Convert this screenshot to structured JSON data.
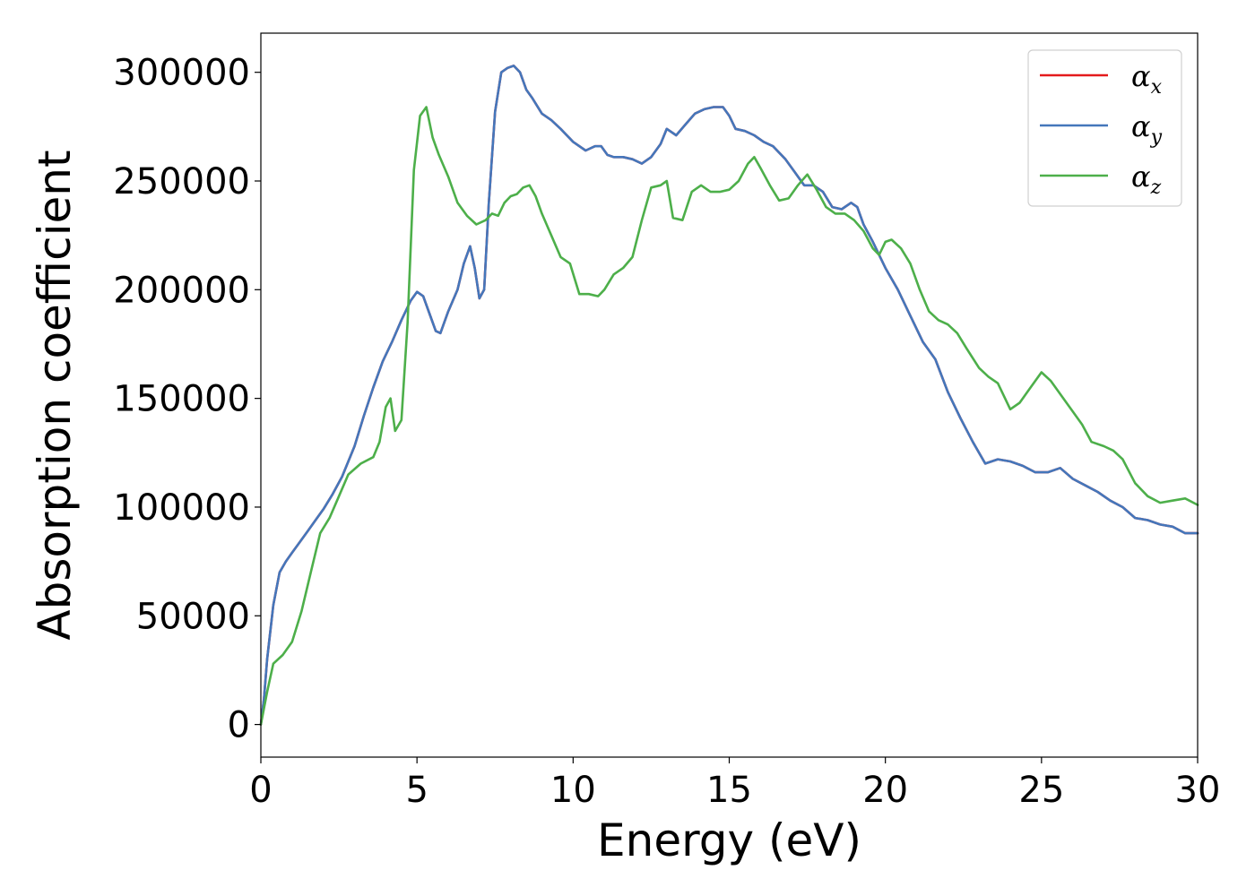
{
  "chart_data": {
    "type": "line",
    "xlabel": "Energy (eV)",
    "ylabel": "Absorption coefficient",
    "xlim": [
      0,
      30
    ],
    "ylim": [
      -15000,
      318000
    ],
    "xticks": [
      0,
      5,
      10,
      15,
      20,
      25,
      30
    ],
    "yticks": [
      0,
      50000,
      100000,
      150000,
      200000,
      250000,
      300000
    ],
    "grid": false,
    "legend_position": "top-right",
    "series": [
      {
        "name": "α_x",
        "legend_symbol": "α",
        "legend_subscript": "x",
        "color": "#e41a1c",
        "x": [
          0,
          0.1,
          0.2,
          0.4,
          0.6,
          0.8,
          1.0,
          1.2,
          1.5,
          1.8,
          2.0,
          2.3,
          2.6,
          3.0,
          3.3,
          3.6,
          3.9,
          4.2,
          4.5,
          4.8,
          5.0,
          5.2,
          5.4,
          5.6,
          5.75,
          6.0,
          6.3,
          6.5,
          6.7,
          6.85,
          7.0,
          7.15,
          7.3,
          7.5,
          7.7,
          7.9,
          8.1,
          8.3,
          8.5,
          8.7,
          9.0,
          9.3,
          9.6,
          10.0,
          10.4,
          10.7,
          10.9,
          11.1,
          11.3,
          11.6,
          11.9,
          12.2,
          12.5,
          12.8,
          13.0,
          13.3,
          13.6,
          13.9,
          14.2,
          14.5,
          14.8,
          15.0,
          15.2,
          15.5,
          15.8,
          16.1,
          16.4,
          16.8,
          17.1,
          17.4,
          17.7,
          18.0,
          18.3,
          18.6,
          18.9,
          19.1,
          19.3,
          19.6,
          20.0,
          20.4,
          20.8,
          21.2,
          21.6,
          22.0,
          22.4,
          22.8,
          23.2,
          23.6,
          24.0,
          24.4,
          24.8,
          25.2,
          25.6,
          26.0,
          26.4,
          26.8,
          27.2,
          27.6,
          28.0,
          28.4,
          28.8,
          29.2,
          29.6,
          30.0
        ],
        "y": [
          0,
          12000,
          30000,
          55000,
          70000,
          75000,
          79000,
          83000,
          89000,
          95000,
          99000,
          106000,
          114000,
          128000,
          142000,
          155000,
          167000,
          176000,
          186000,
          195000,
          199000,
          197000,
          189000,
          181000,
          180000,
          190000,
          200000,
          212000,
          220000,
          210000,
          196000,
          200000,
          240000,
          282000,
          300000,
          302000,
          303000,
          300000,
          292000,
          288000,
          281000,
          278000,
          274000,
          268000,
          264000,
          266000,
          266000,
          262000,
          261000,
          261000,
          260000,
          258000,
          261000,
          267000,
          274000,
          271000,
          276000,
          281000,
          283000,
          284000,
          284000,
          280000,
          274000,
          273000,
          271000,
          268000,
          266000,
          260000,
          254000,
          248000,
          248000,
          245000,
          238000,
          237000,
          240000,
          238000,
          230000,
          222000,
          210000,
          200000,
          188000,
          176000,
          168000,
          153000,
          141000,
          130000,
          120000,
          122000,
          121000,
          119000,
          116000,
          116000,
          118000,
          113000,
          110000,
          107000,
          103000,
          100000,
          95000,
          94000,
          92000,
          91000,
          88000,
          88000
        ]
      },
      {
        "name": "α_y",
        "legend_symbol": "α",
        "legend_subscript": "y",
        "color": "#4477bb",
        "x": [
          0,
          0.1,
          0.2,
          0.4,
          0.6,
          0.8,
          1.0,
          1.2,
          1.5,
          1.8,
          2.0,
          2.3,
          2.6,
          3.0,
          3.3,
          3.6,
          3.9,
          4.2,
          4.5,
          4.8,
          5.0,
          5.2,
          5.4,
          5.6,
          5.75,
          6.0,
          6.3,
          6.5,
          6.7,
          6.85,
          7.0,
          7.15,
          7.3,
          7.5,
          7.7,
          7.9,
          8.1,
          8.3,
          8.5,
          8.7,
          9.0,
          9.3,
          9.6,
          10.0,
          10.4,
          10.7,
          10.9,
          11.1,
          11.3,
          11.6,
          11.9,
          12.2,
          12.5,
          12.8,
          13.0,
          13.3,
          13.6,
          13.9,
          14.2,
          14.5,
          14.8,
          15.0,
          15.2,
          15.5,
          15.8,
          16.1,
          16.4,
          16.8,
          17.1,
          17.4,
          17.7,
          18.0,
          18.3,
          18.6,
          18.9,
          19.1,
          19.3,
          19.6,
          20.0,
          20.4,
          20.8,
          21.2,
          21.6,
          22.0,
          22.4,
          22.8,
          23.2,
          23.6,
          24.0,
          24.4,
          24.8,
          25.2,
          25.6,
          26.0,
          26.4,
          26.8,
          27.2,
          27.6,
          28.0,
          28.4,
          28.8,
          29.2,
          29.6,
          30.0
        ],
        "y": [
          0,
          12000,
          30000,
          55000,
          70000,
          75000,
          79000,
          83000,
          89000,
          95000,
          99000,
          106000,
          114000,
          128000,
          142000,
          155000,
          167000,
          176000,
          186000,
          195000,
          199000,
          197000,
          189000,
          181000,
          180000,
          190000,
          200000,
          212000,
          220000,
          210000,
          196000,
          200000,
          240000,
          282000,
          300000,
          302000,
          303000,
          300000,
          292000,
          288000,
          281000,
          278000,
          274000,
          268000,
          264000,
          266000,
          266000,
          262000,
          261000,
          261000,
          260000,
          258000,
          261000,
          267000,
          274000,
          271000,
          276000,
          281000,
          283000,
          284000,
          284000,
          280000,
          274000,
          273000,
          271000,
          268000,
          266000,
          260000,
          254000,
          248000,
          248000,
          245000,
          238000,
          237000,
          240000,
          238000,
          230000,
          222000,
          210000,
          200000,
          188000,
          176000,
          168000,
          153000,
          141000,
          130000,
          120000,
          122000,
          121000,
          119000,
          116000,
          116000,
          118000,
          113000,
          110000,
          107000,
          103000,
          100000,
          95000,
          94000,
          92000,
          91000,
          88000,
          88000
        ]
      },
      {
        "name": "α_z",
        "legend_symbol": "α",
        "legend_subscript": "z",
        "color": "#4daf4a",
        "x": [
          0,
          0.2,
          0.4,
          0.7,
          1.0,
          1.3,
          1.6,
          1.9,
          2.2,
          2.5,
          2.8,
          3.2,
          3.6,
          3.8,
          4.0,
          4.15,
          4.3,
          4.5,
          4.7,
          4.9,
          5.1,
          5.3,
          5.5,
          5.7,
          6.0,
          6.3,
          6.6,
          6.9,
          7.2,
          7.4,
          7.6,
          7.8,
          8.0,
          8.2,
          8.4,
          8.6,
          8.8,
          9.0,
          9.3,
          9.6,
          9.9,
          10.2,
          10.5,
          10.8,
          11.0,
          11.3,
          11.6,
          11.9,
          12.2,
          12.5,
          12.8,
          13.0,
          13.2,
          13.5,
          13.8,
          14.1,
          14.4,
          14.7,
          15.0,
          15.3,
          15.6,
          15.8,
          16.0,
          16.3,
          16.6,
          16.9,
          17.2,
          17.5,
          17.8,
          18.1,
          18.4,
          18.7,
          19.0,
          19.3,
          19.6,
          19.8,
          20.0,
          20.2,
          20.5,
          20.8,
          21.1,
          21.4,
          21.7,
          22.0,
          22.3,
          22.6,
          23.0,
          23.3,
          23.6,
          24.0,
          24.3,
          24.6,
          25.0,
          25.3,
          25.6,
          26.0,
          26.3,
          26.6,
          27.0,
          27.3,
          27.6,
          28.0,
          28.4,
          28.8,
          29.2,
          29.6,
          30.0
        ],
        "y": [
          0,
          15000,
          28000,
          32000,
          38000,
          52000,
          70000,
          88000,
          95000,
          105000,
          115000,
          120000,
          123000,
          130000,
          146000,
          150000,
          135000,
          140000,
          185000,
          255000,
          280000,
          284000,
          270000,
          262000,
          252000,
          240000,
          234000,
          230000,
          232000,
          235000,
          234000,
          240000,
          243000,
          244000,
          247000,
          248000,
          243000,
          235000,
          225000,
          215000,
          212000,
          198000,
          198000,
          197000,
          200000,
          207000,
          210000,
          215000,
          232000,
          247000,
          248000,
          250000,
          233000,
          232000,
          245000,
          248000,
          245000,
          245000,
          246000,
          250000,
          258000,
          261000,
          256000,
          248000,
          241000,
          242000,
          248000,
          253000,
          246000,
          238000,
          235000,
          235000,
          232000,
          227000,
          219000,
          216000,
          222000,
          223000,
          219000,
          212000,
          200000,
          190000,
          186000,
          184000,
          180000,
          173000,
          164000,
          160000,
          157000,
          145000,
          148000,
          154000,
          162000,
          158000,
          152000,
          144000,
          138000,
          130000,
          128000,
          126000,
          122000,
          111000,
          105000,
          102000,
          103000,
          104000,
          101000
        ]
      }
    ]
  }
}
